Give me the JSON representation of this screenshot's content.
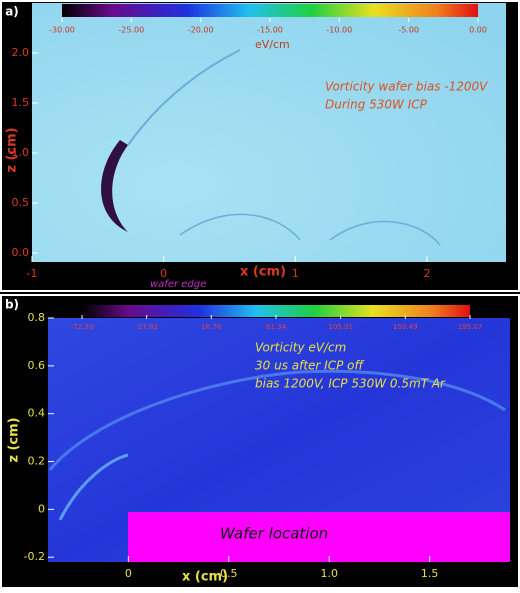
{
  "chart_data": [
    {
      "type": "heatmap",
      "panel_label": "a)",
      "x_label": "x (cm)",
      "y_label": "z (cm)",
      "xlim": [
        -1,
        2.6
      ],
      "ylim": [
        -0.09,
        2.5
      ],
      "xticks": [
        -1,
        0,
        1,
        2
      ],
      "yticks": [
        {
          "value": 0,
          "label": "0.0"
        },
        {
          "value": 0.5,
          "label": "0.5"
        },
        {
          "value": 1,
          "label": "1.0"
        },
        {
          "value": 1.5,
          "label": "1.5"
        },
        {
          "value": 2,
          "label": "2.0"
        }
      ],
      "colorbar_label": "eV/cm",
      "colorbar_ticks": [
        {
          "value": -30,
          "label": "-30.00"
        },
        {
          "value": -25,
          "label": "-25.00"
        },
        {
          "value": -20,
          "label": "-20.00"
        },
        {
          "value": -15,
          "label": "-15.00"
        },
        {
          "value": -10,
          "label": "-10.00"
        },
        {
          "value": -5,
          "label": "-5.00"
        },
        {
          "value": 0,
          "label": "0.00"
        }
      ],
      "annotations": [
        "Vorticity  wafer bias -1200V",
        "During 530W ICP",
        "wafer edge"
      ]
    },
    {
      "type": "heatmap",
      "panel_label": "b)",
      "x_label": "x (cm)",
      "y_label": "z (cm)",
      "xlim": [
        -0.4,
        1.9
      ],
      "ylim": [
        -0.22,
        0.8
      ],
      "xticks": [
        0,
        0.5,
        {
          "value": 1,
          "label": "1.0"
        },
        1.5
      ],
      "yticks": [
        -0.2,
        0,
        0.2,
        0.4,
        0.6,
        0.8
      ],
      "colorbar_ticks": [
        {
          "value": -72.39,
          "label": "-72.39"
        },
        {
          "value": -27.82,
          "label": "-27.82"
        },
        {
          "value": 16.76,
          "label": "16.76"
        },
        {
          "value": 61.34,
          "label": "61.34"
        },
        {
          "value": 105.91,
          "label": "105.91"
        },
        {
          "value": 150.49,
          "label": "150.49"
        },
        {
          "value": 195.07,
          "label": "195.07"
        }
      ],
      "annotations": [
        "Vorticity eV/cm",
        "30 us after ICP off",
        "bias 1200V, ICP 530W    0.5mT Ar",
        "Wafer location"
      ]
    }
  ]
}
